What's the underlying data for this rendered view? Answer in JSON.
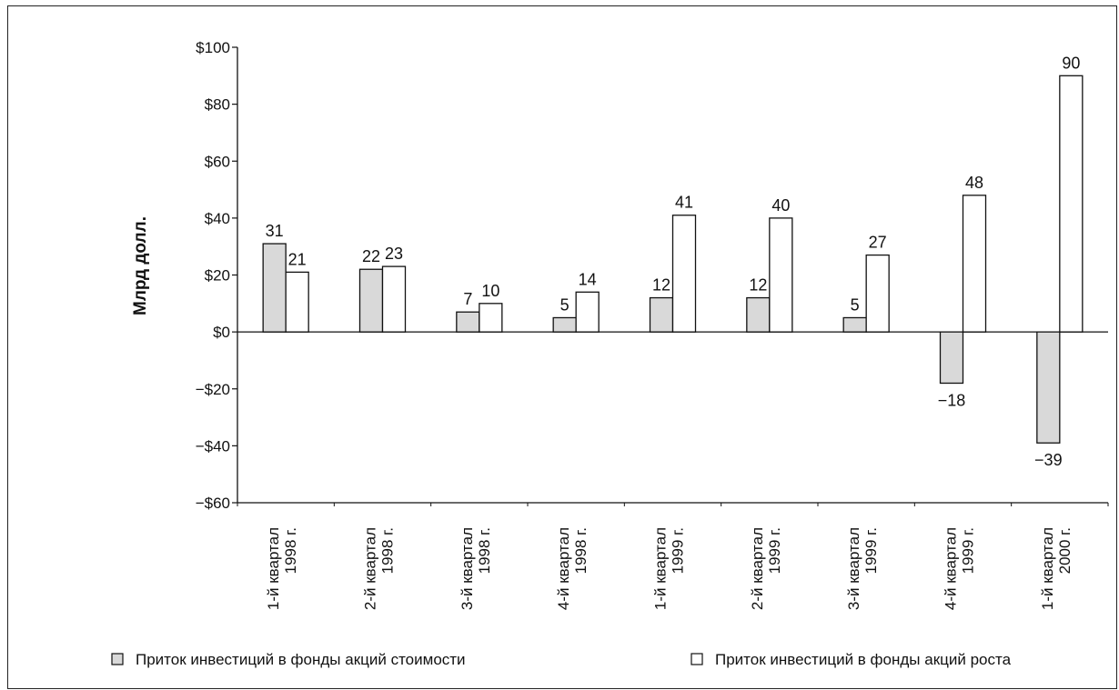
{
  "chart_data": {
    "type": "bar",
    "title": "",
    "ylabel": "Млрд долл.",
    "ylim": [
      -60,
      100
    ],
    "yticks": [
      -60,
      -40,
      -20,
      0,
      20,
      40,
      60,
      80,
      100
    ],
    "ytick_labels": [
      "−$60",
      "−$40",
      "−$20",
      "$0",
      "$20",
      "$40",
      "$60",
      "$80",
      "$100"
    ],
    "grid": false,
    "legend_position": "bottom",
    "categories": [
      [
        "1-й квартал",
        "1998 г."
      ],
      [
        "2-й квартал",
        "1998 г."
      ],
      [
        "3-й квартал",
        "1998 г."
      ],
      [
        "4-й квартал",
        "1998 г."
      ],
      [
        "1-й квартал",
        "1999 г."
      ],
      [
        "2-й квартал",
        "1999 г."
      ],
      [
        "3-й квартал",
        "1999 г."
      ],
      [
        "4-й квартал",
        "1999 г."
      ],
      [
        "1-й квартал",
        "2000 г."
      ]
    ],
    "series": [
      {
        "name": "Приток инвестиций в фонды акций стоимости",
        "color": "#d9d9d9",
        "values": [
          31,
          22,
          7,
          5,
          12,
          12,
          5,
          -18,
          -39
        ],
        "labels": [
          "31",
          "22",
          "7",
          "5",
          "12",
          "12",
          "5",
          "−18",
          "−39"
        ]
      },
      {
        "name": "Приток инвестиций в фонды акций роста",
        "color": "#ffffff",
        "values": [
          21,
          23,
          10,
          14,
          41,
          40,
          27,
          48,
          90
        ],
        "labels": [
          "21",
          "23",
          "10",
          "14",
          "41",
          "40",
          "27",
          "48",
          "90"
        ]
      }
    ]
  }
}
